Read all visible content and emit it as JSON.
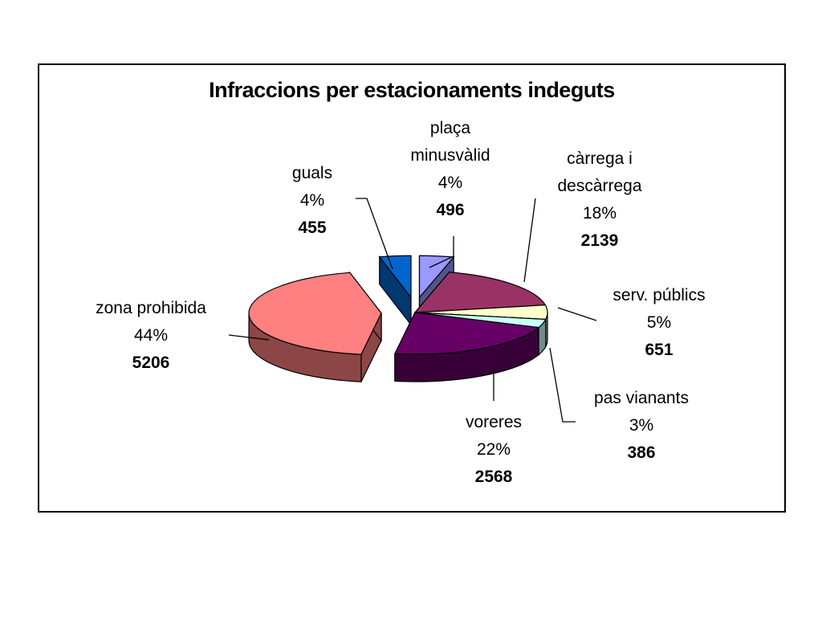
{
  "chart_data": {
    "type": "pie",
    "title": "Infraccions per estacionaments indeguts",
    "slices": [
      {
        "label_lines": [
          "plaça",
          "minusvàlid"
        ],
        "percent": "4%",
        "value": 496,
        "color": "#9999ff",
        "exploded": true
      },
      {
        "label_lines": [
          "càrrega i",
          "descàrrega"
        ],
        "percent": "18%",
        "value": 2139,
        "color": "#993366",
        "exploded": false
      },
      {
        "label_lines": [
          "serv. públics"
        ],
        "percent": "5%",
        "value": 651,
        "color": "#ffffcc",
        "exploded": false
      },
      {
        "label_lines": [
          "pas vianants"
        ],
        "percent": "3%",
        "value": 386,
        "color": "#ccffff",
        "exploded": false
      },
      {
        "label_lines": [
          "voreres"
        ],
        "percent": "22%",
        "value": 2568,
        "color": "#660066",
        "exploded": false
      },
      {
        "label_lines": [
          "zona prohibida"
        ],
        "percent": "44%",
        "value": 5206,
        "color": "#ff8080",
        "exploded": true
      },
      {
        "label_lines": [
          "guals"
        ],
        "percent": "4%",
        "value": 455,
        "color": "#0066cc",
        "exploded": true
      }
    ]
  }
}
